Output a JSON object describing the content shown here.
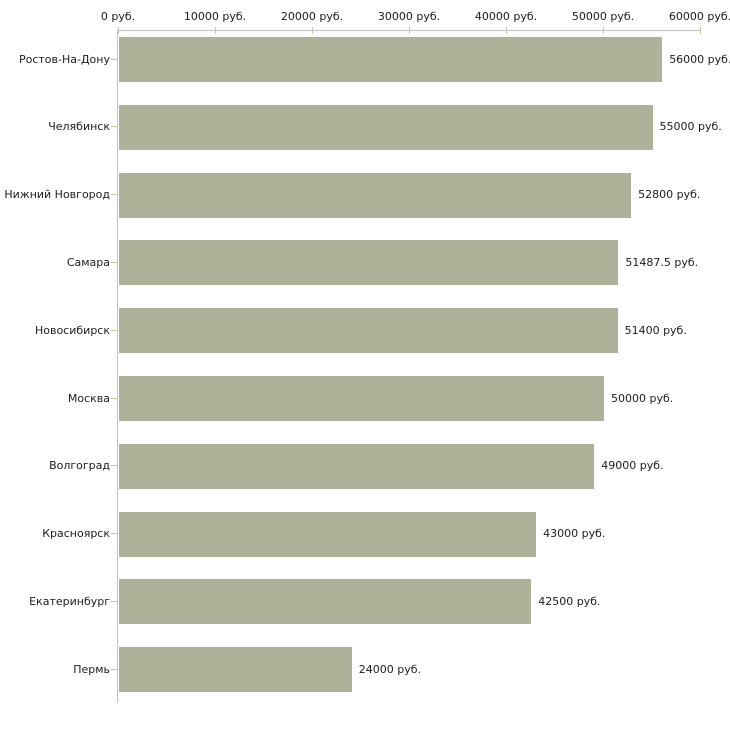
{
  "colors": {
    "background": "#ffffff",
    "bar": "#adb299",
    "x_axis_line": "#c4c4c4",
    "y_axis_line": "#c6c6a6",
    "tick": "#c9c99e",
    "text": "#1c1c1c"
  },
  "chart_data": {
    "type": "bar",
    "orientation": "horizontal",
    "title": "",
    "xlabel": "",
    "ylabel": "",
    "xlim": [
      0,
      60000
    ],
    "grid": false,
    "legend": false,
    "axis_position": "top",
    "unit_suffix": " руб.",
    "x_ticks": [
      0,
      10000,
      20000,
      30000,
      40000,
      50000,
      60000
    ],
    "x_tick_labels": [
      "0 руб.",
      "10000 руб.",
      "20000 руб.",
      "30000 руб.",
      "40000 руб.",
      "50000 руб.",
      "60000 руб."
    ],
    "categories": [
      "Ростов-На-Дону",
      "Челябинск",
      "Нижний Новгород",
      "Самара",
      "Новосибирск",
      "Москва",
      "Волгоград",
      "Красноярск",
      "Екатеринбург",
      "Пермь"
    ],
    "values": [
      56000,
      55000,
      52800,
      51487.5,
      51400,
      50000,
      49000,
      43000,
      42500,
      24000
    ],
    "value_labels": [
      "56000 руб.",
      "55000 руб.",
      "52800 руб.",
      "51487.5 руб.",
      "51400 руб.",
      "50000 руб.",
      "49000 руб.",
      "43000 руб.",
      "42500 руб.",
      "24000 руб."
    ]
  }
}
